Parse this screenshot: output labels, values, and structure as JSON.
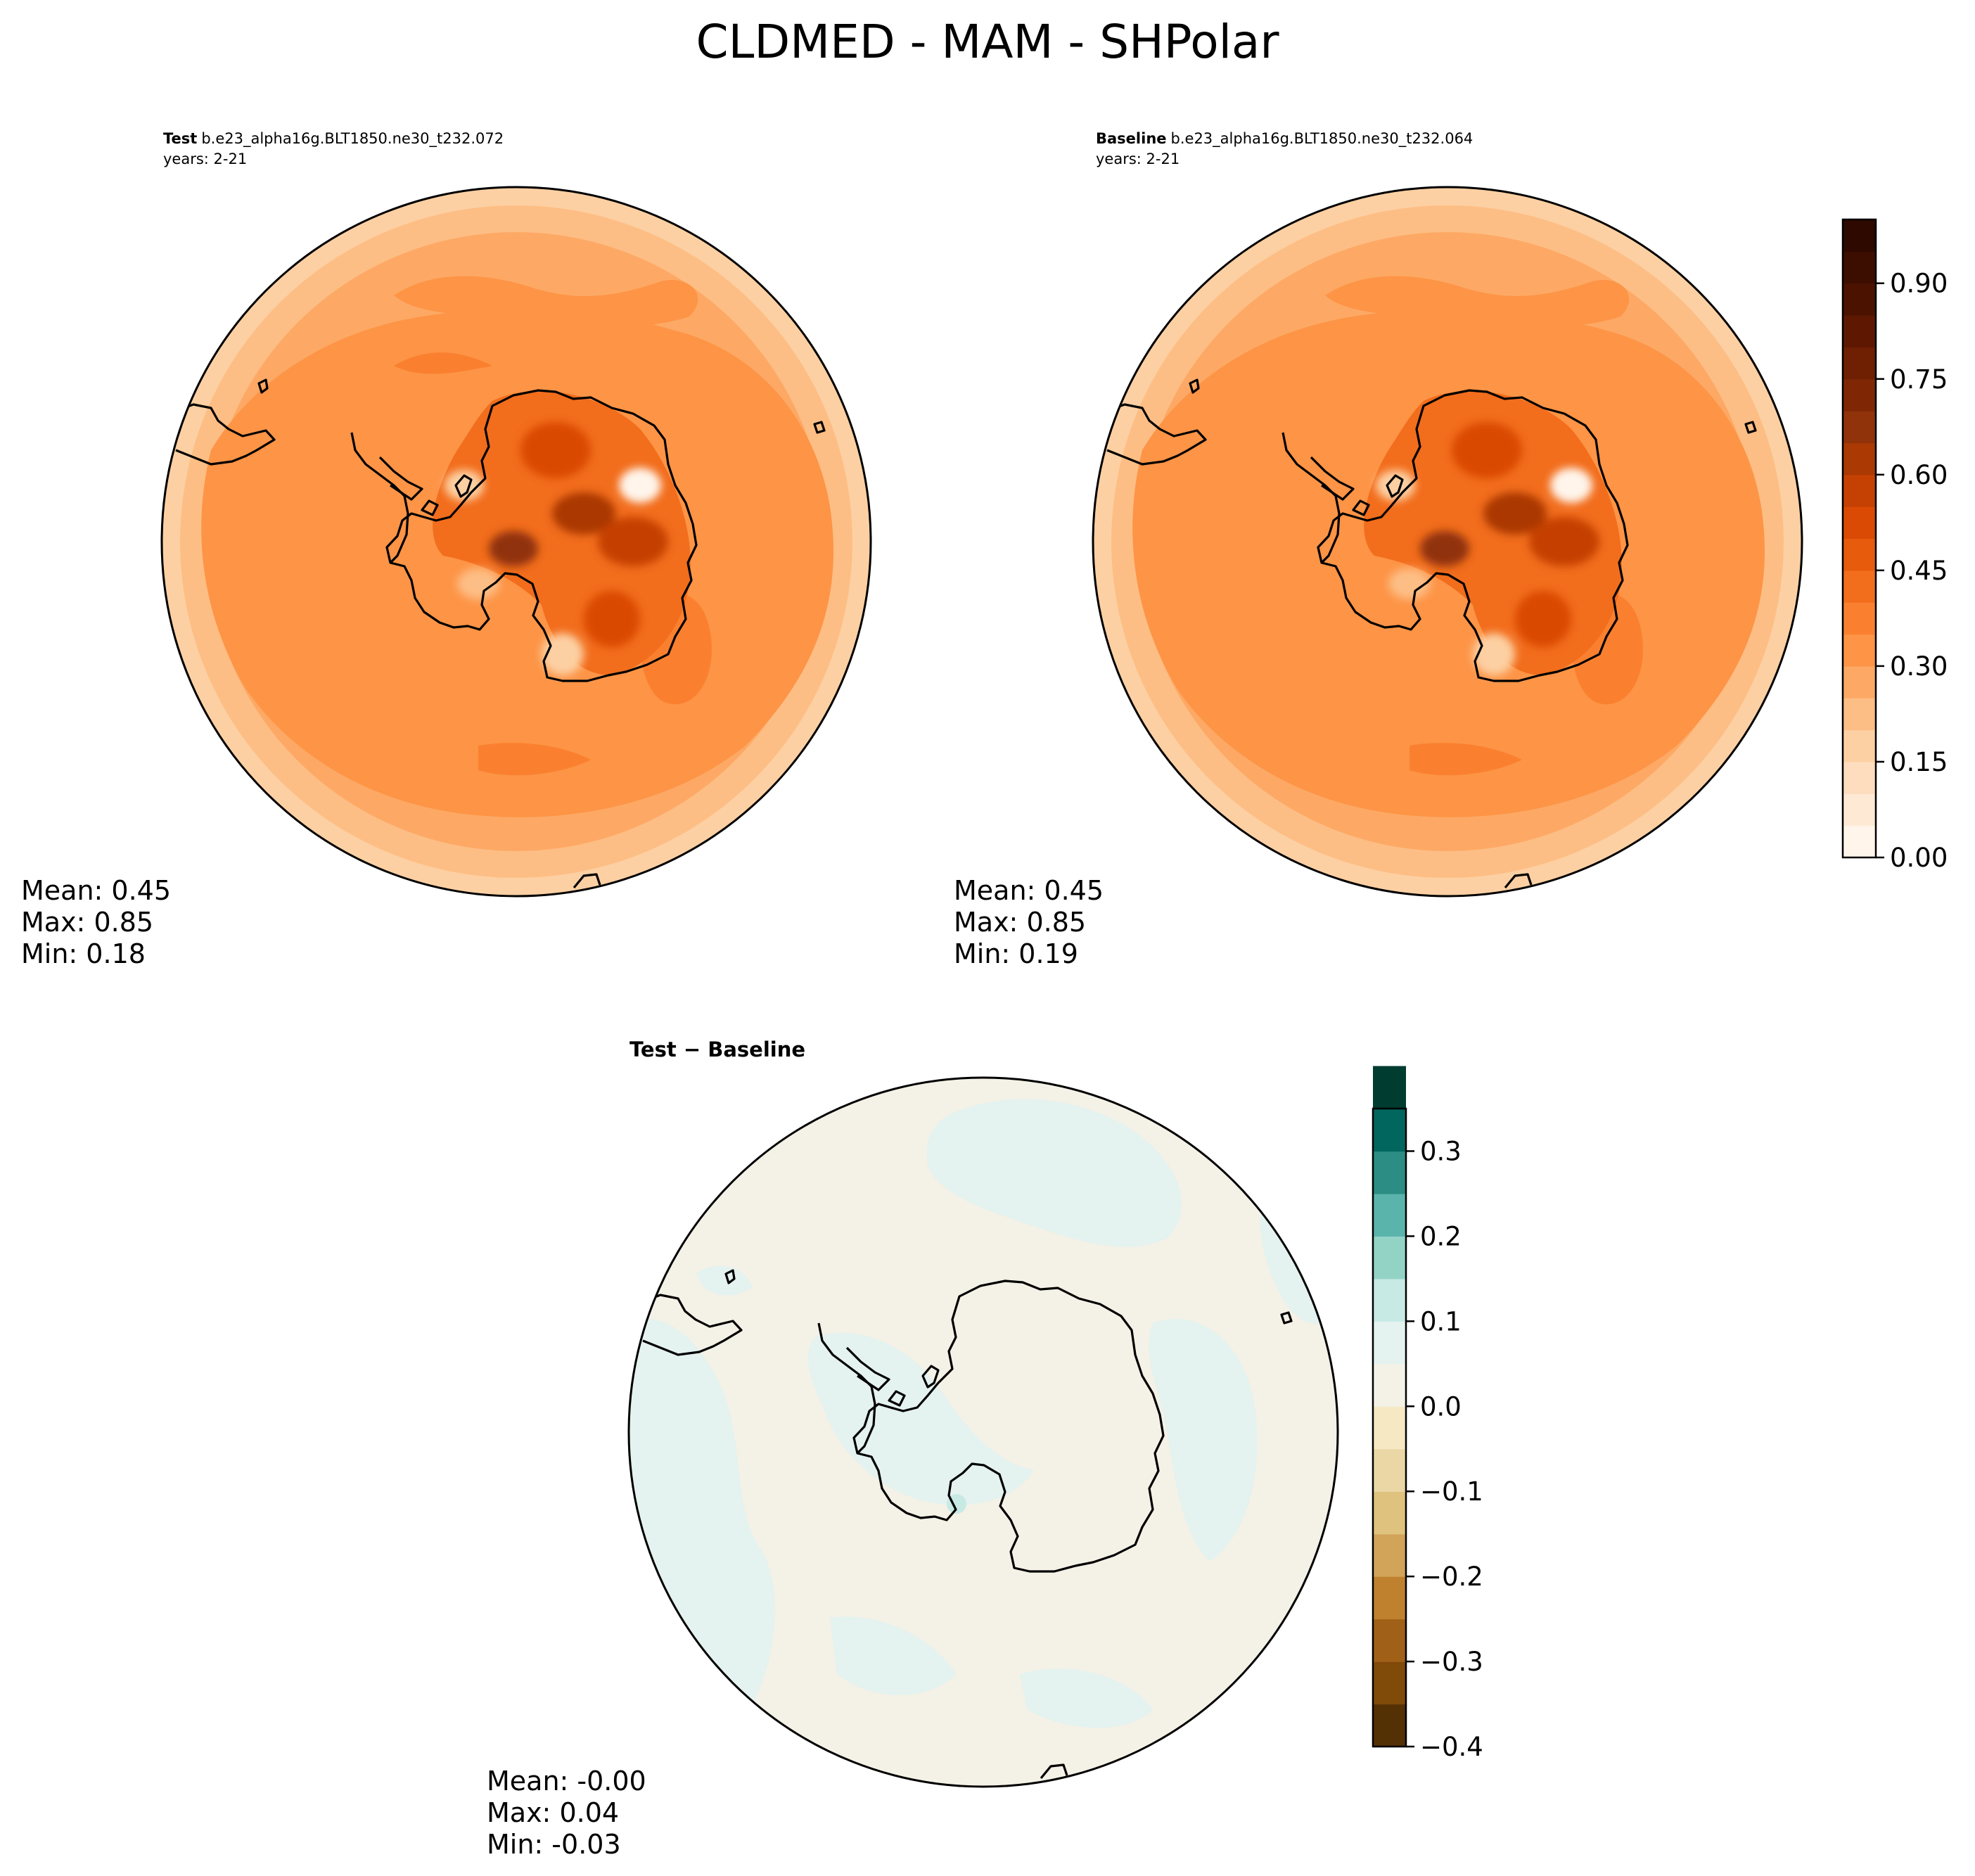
{
  "figure": {
    "title": "CLDMED - MAM - SHPolar"
  },
  "chart_data": [
    {
      "type": "heatmap",
      "name": "test",
      "projection": "south-polar-stereographic",
      "label_bold": "Test",
      "case": "b.e23_alpha16g.BLT1850.ne30_t232.072",
      "years": "years: 2-21",
      "colormap": "Oranges",
      "stats": {
        "mean": "Mean:  0.45",
        "max": "Max:  0.85",
        "min": "Min:  0.18"
      },
      "field_estimate": {
        "ocean_ring_pattern": [
          0.22,
          0.27,
          0.32,
          0.37,
          0.42,
          0.44
        ],
        "antarctic_interior_peaks": [
          0.85,
          0.78,
          0.75,
          0.72
        ],
        "coastal_minima": [
          0.18,
          0.25,
          0.28
        ]
      }
    },
    {
      "type": "heatmap",
      "name": "baseline",
      "projection": "south-polar-stereographic",
      "label_bold": "Baseline",
      "case": "b.e23_alpha16g.BLT1850.ne30_t232.064",
      "years": "years: 2-21",
      "colormap": "Oranges",
      "stats": {
        "mean": "Mean:  0.45",
        "max": "Max:  0.85",
        "min": "Min:  0.19"
      },
      "field_estimate": {
        "ocean_ring_pattern": [
          0.22,
          0.27,
          0.32,
          0.37,
          0.42,
          0.44
        ],
        "antarctic_interior_peaks": [
          0.85,
          0.78,
          0.75,
          0.72
        ],
        "coastal_minima": [
          0.19,
          0.25,
          0.28
        ]
      }
    },
    {
      "type": "heatmap",
      "name": "difference",
      "projection": "south-polar-stereographic",
      "label": "Test − Baseline",
      "colormap": "BrBG",
      "stats": {
        "mean": "Mean: -0.00",
        "max": "Max:  0.04",
        "min": "Min: -0.03"
      },
      "field_estimate": {
        "range": [
          -0.03,
          0.04
        ],
        "dominant_bins": [
          "-0.05–0.00",
          "0.00–0.05"
        ]
      }
    }
  ],
  "colorbars": {
    "main": {
      "min": 0.0,
      "max": 1.0,
      "step": 0.05,
      "ticks": [
        0.0,
        0.15,
        0.3,
        0.45,
        0.6,
        0.75,
        0.9
      ],
      "tick_labels": [
        "0.00",
        "0.15",
        "0.30",
        "0.45",
        "0.60",
        "0.75",
        "0.90"
      ],
      "colors": [
        "#fff5eb",
        "#fee9d5",
        "#fdddbe",
        "#fdd0a3",
        "#fdbe85",
        "#fda965",
        "#fd9446",
        "#fa8030",
        "#f26d1c",
        "#e75b0d",
        "#da4a05",
        "#c54103",
        "#aa3903",
        "#90320a",
        "#7f2704",
        "#6f1f02",
        "#5e1802",
        "#4c1200",
        "#3c0e00",
        "#2e0900"
      ]
    },
    "diff": {
      "min": -0.4,
      "max": 0.35,
      "step": 0.05,
      "ticks": [
        -0.4,
        -0.3,
        -0.2,
        -0.1,
        0.0,
        0.1,
        0.2,
        0.3
      ],
      "tick_labels": [
        "−0.4",
        "−0.3",
        "−0.2",
        "−0.1",
        "0.0",
        "0.1",
        "0.2",
        "0.3"
      ],
      "colors": [
        "#543005",
        "#804a09",
        "#a16018",
        "#bf812d",
        "#d1a45a",
        "#dfc27d",
        "#ebd7a5",
        "#f6e8c3",
        "#f4f1e6",
        "#e4f2f0",
        "#c7eae5",
        "#93d3c6",
        "#5ab4ac",
        "#2b8d83",
        "#01665e",
        "#003c30"
      ]
    }
  }
}
